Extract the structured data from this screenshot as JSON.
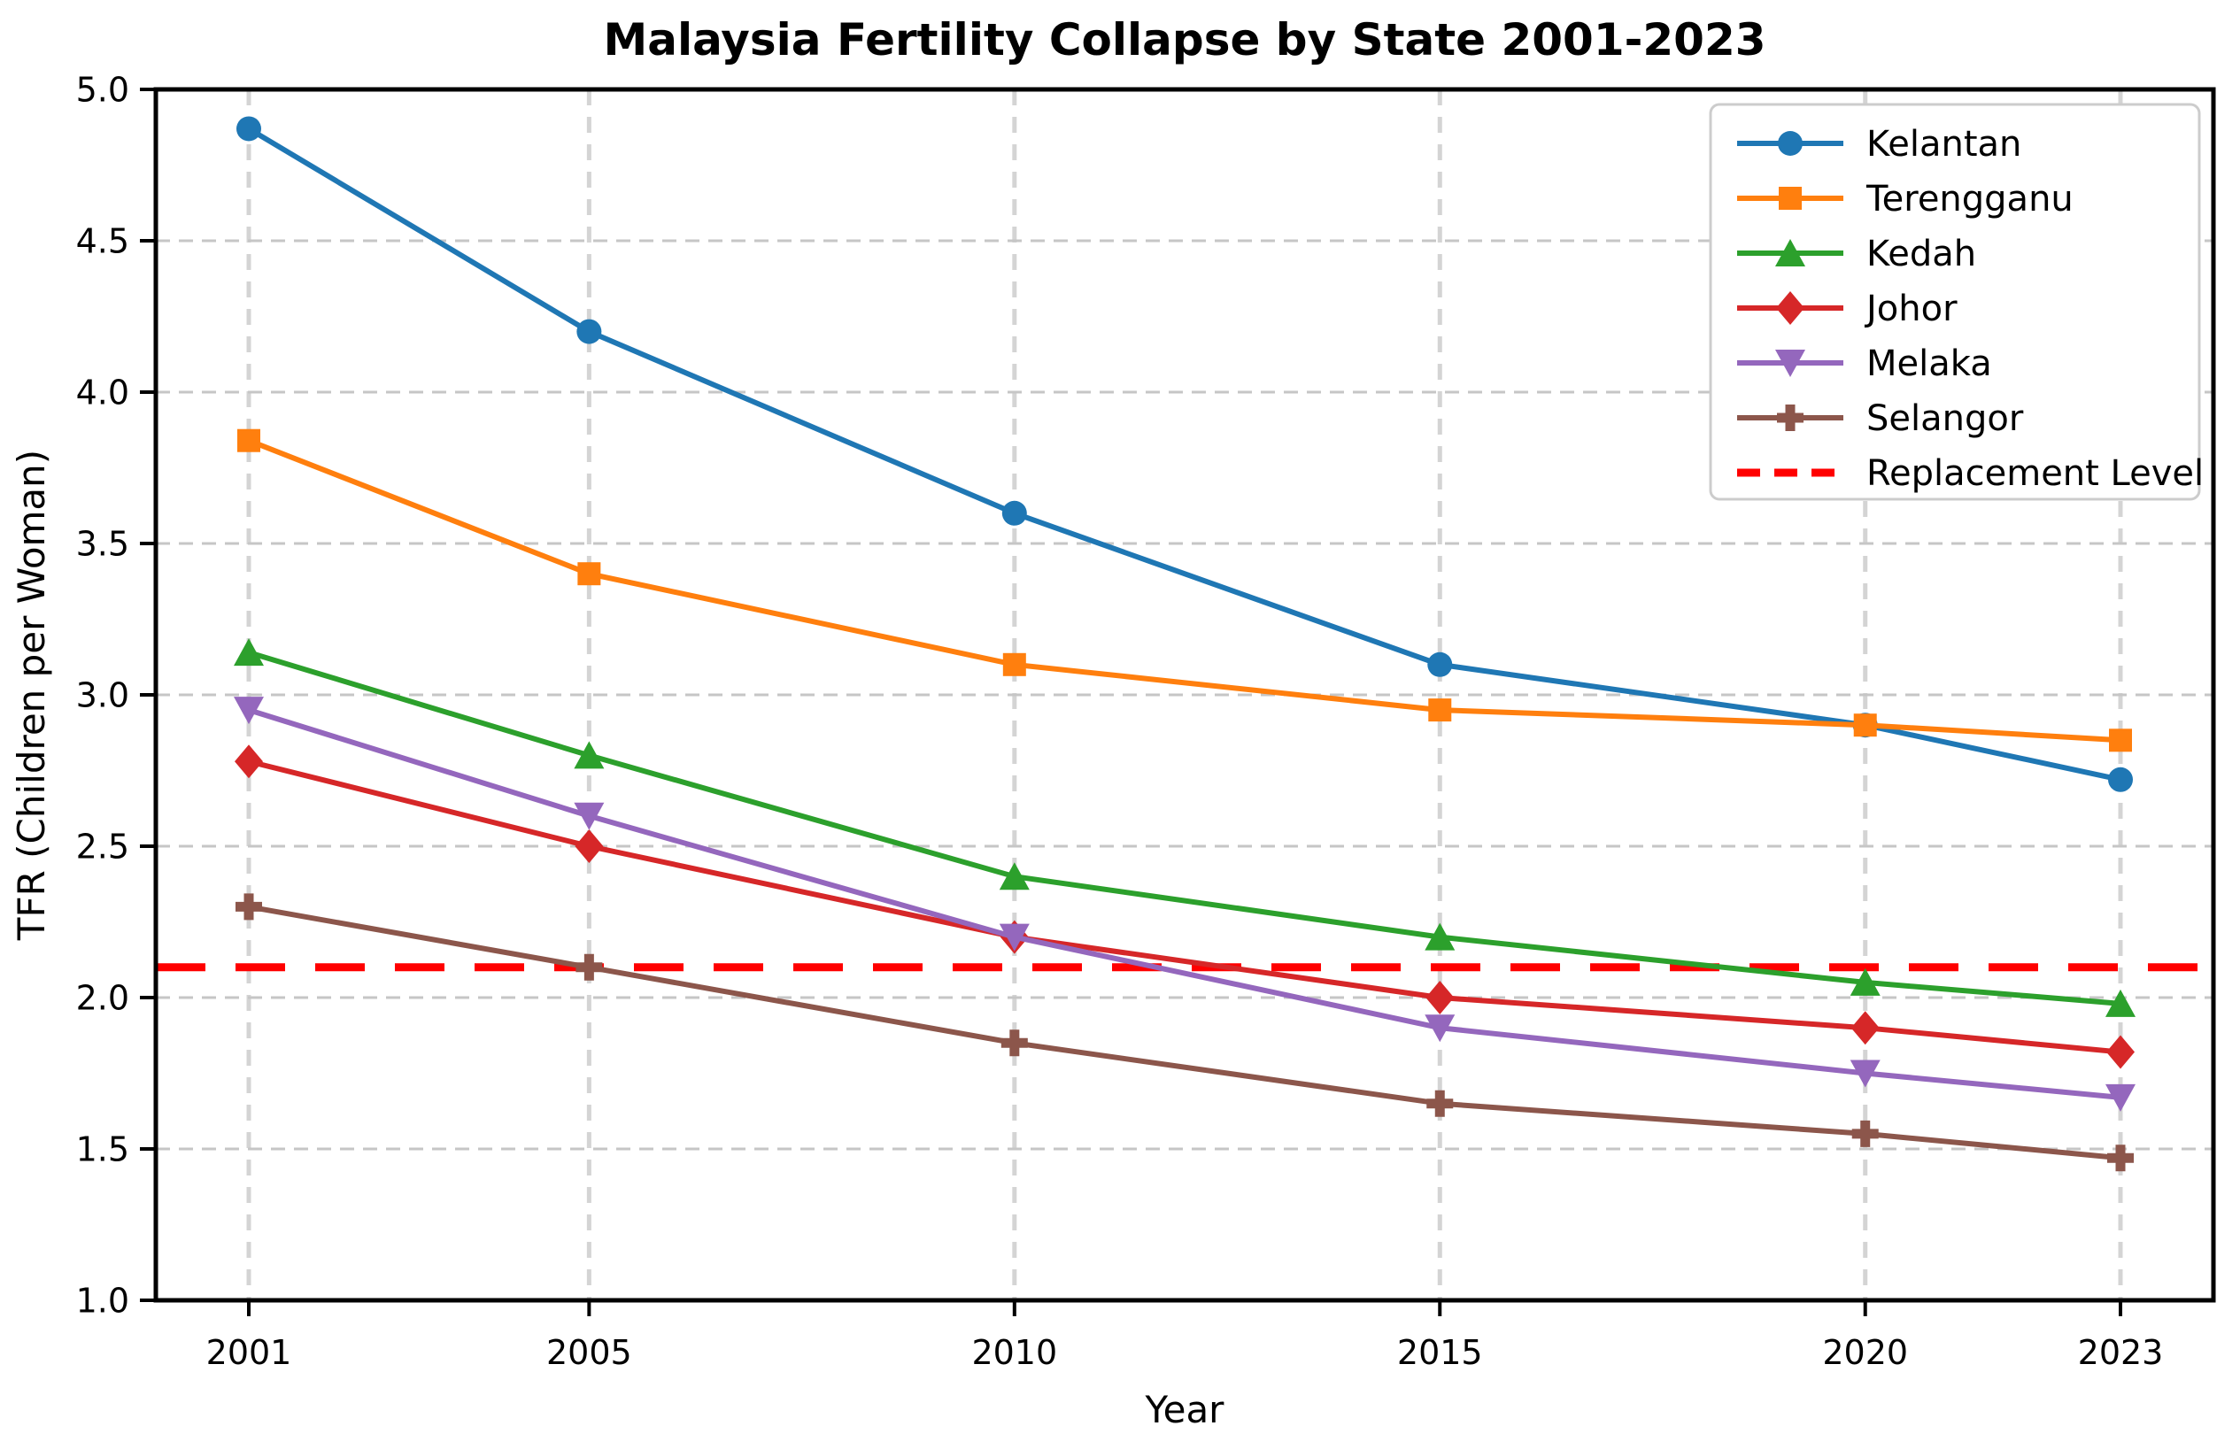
{
  "title": "Malaysia Fertility Collapse by State 2001-2023",
  "chart_data": {
    "type": "line",
    "title": "Malaysia Fertility Collapse by State 2001-2023",
    "xlabel": "Year",
    "ylabel": "TFR (Children per Woman)",
    "x": [
      2001,
      2005,
      2010,
      2015,
      2020,
      2023
    ],
    "xtick_labels": [
      "2001",
      "2005",
      "2010",
      "2015",
      "2020",
      "2023"
    ],
    "ylim": [
      1.0,
      5.0
    ],
    "ytick_values": [
      5.0,
      4.5,
      4.0,
      3.5,
      3.0,
      2.5,
      2.0,
      1.5,
      1.0
    ],
    "ytick_labels": [
      "5.0",
      "4.5",
      "4.0",
      "3.5",
      "3.0",
      "2.5",
      "2.0",
      "1.5",
      "1.0"
    ],
    "grid": true,
    "grid_style": "dashed",
    "legend_position": "upper right",
    "series": [
      {
        "name": "Kelantan",
        "color": "#1f77b4",
        "marker": "circle",
        "values": [
          4.87,
          4.2,
          3.6,
          3.1,
          2.9,
          2.72
        ]
      },
      {
        "name": "Terengganu",
        "color": "#ff7f0e",
        "marker": "square",
        "values": [
          3.84,
          3.4,
          3.1,
          2.95,
          2.9,
          2.85
        ]
      },
      {
        "name": "Kedah",
        "color": "#2ca02c",
        "marker": "triangle-up",
        "values": [
          3.14,
          2.8,
          2.4,
          2.2,
          2.05,
          1.98
        ]
      },
      {
        "name": "Johor",
        "color": "#d62728",
        "marker": "diamond",
        "values": [
          2.78,
          2.5,
          2.2,
          2.0,
          1.9,
          1.82
        ]
      },
      {
        "name": "Melaka",
        "color": "#9467bd",
        "marker": "triangle-down",
        "values": [
          2.95,
          2.6,
          2.2,
          1.9,
          1.75,
          1.67
        ]
      },
      {
        "name": "Selangor",
        "color": "#8c564b",
        "marker": "plus",
        "values": [
          2.3,
          2.1,
          1.85,
          1.65,
          1.55,
          1.47
        ]
      }
    ],
    "reference_line": {
      "label": "Replacement Level",
      "value": 2.1,
      "color": "#ff0000",
      "style": "dashed"
    }
  }
}
